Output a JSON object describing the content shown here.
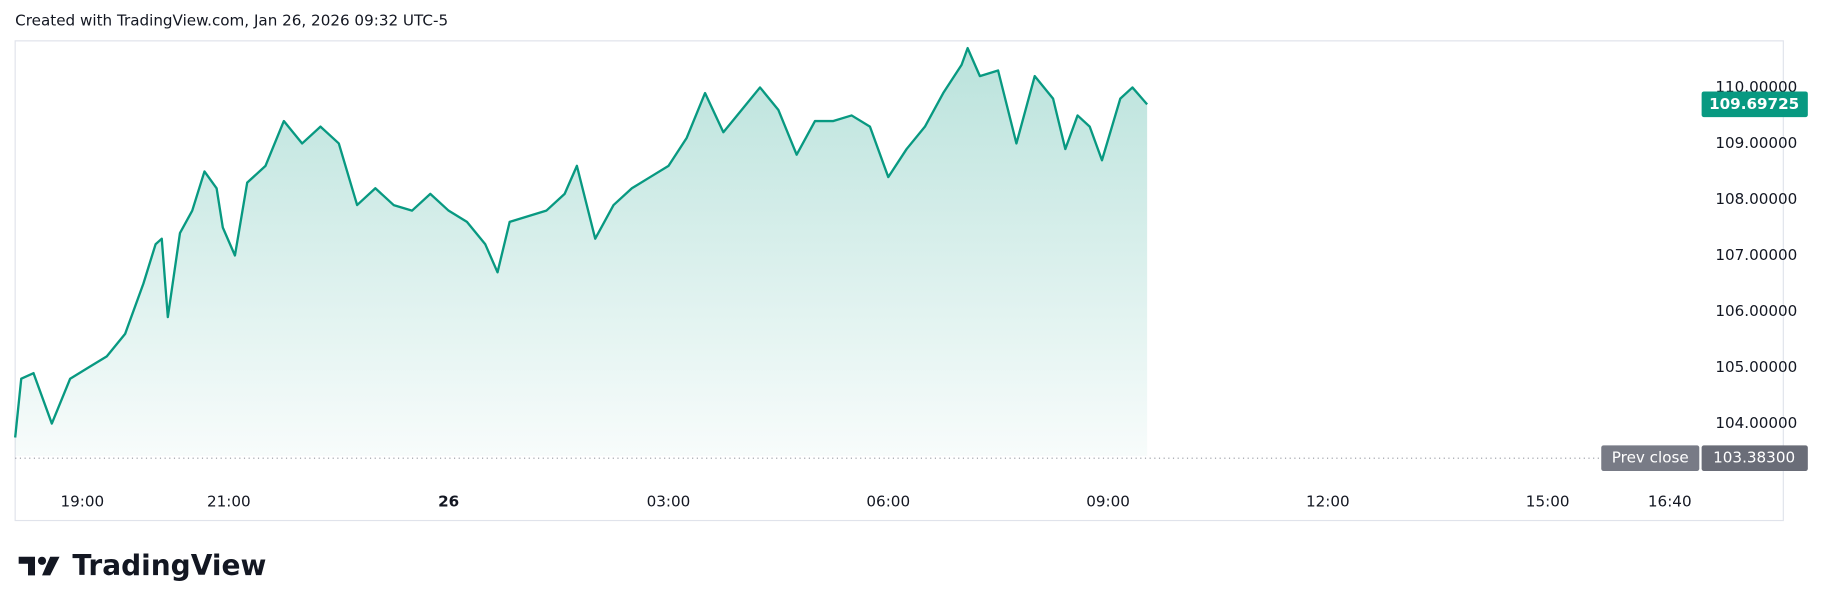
{
  "header": "Created with TradingView.com, Jan 26, 2026 09:32 UTC-5",
  "brand": "TradingView",
  "chart_data": {
    "type": "line",
    "color": "#089981",
    "x": [
      "18:05",
      "18:10",
      "18:20",
      "18:35",
      "18:50",
      "19:05",
      "19:20",
      "19:35",
      "19:50",
      "20:00",
      "20:05",
      "20:10",
      "20:20",
      "20:30",
      "20:40",
      "20:50",
      "20:55",
      "21:05",
      "21:15",
      "21:30",
      "21:45",
      "22:00",
      "22:15",
      "22:30",
      "22:45",
      "23:00",
      "23:15",
      "23:30",
      "23:45",
      "00:00",
      "00:15",
      "00:30",
      "00:40",
      "00:50",
      "01:05",
      "01:20",
      "01:35",
      "01:45",
      "02:00",
      "02:15",
      "02:30",
      "02:45",
      "03:00",
      "03:15",
      "03:30",
      "03:45",
      "04:00",
      "04:15",
      "04:30",
      "04:45",
      "05:00",
      "05:15",
      "05:30",
      "05:45",
      "06:00",
      "06:15",
      "06:30",
      "06:45",
      "07:00",
      "07:05",
      "07:15",
      "07:30",
      "07:45",
      "08:00",
      "08:15",
      "08:25",
      "08:35",
      "08:45",
      "08:55",
      "09:10",
      "09:20",
      "09:32"
    ],
    "values": [
      103.75,
      104.8,
      104.9,
      104.0,
      104.8,
      105.0,
      105.2,
      105.6,
      106.5,
      107.2,
      107.3,
      105.9,
      107.4,
      107.8,
      108.5,
      108.2,
      107.5,
      107.0,
      108.3,
      108.6,
      109.4,
      109.0,
      109.3,
      109.0,
      107.9,
      108.2,
      107.9,
      107.8,
      108.1,
      107.8,
      107.6,
      107.2,
      106.7,
      107.6,
      107.7,
      107.8,
      108.1,
      108.6,
      107.3,
      107.9,
      108.2,
      108.4,
      108.6,
      109.1,
      109.9,
      109.2,
      109.6,
      110.0,
      109.6,
      108.8,
      109.4,
      109.4,
      109.5,
      109.3,
      108.4,
      108.9,
      109.3,
      109.9,
      110.4,
      110.7,
      110.2,
      110.3,
      109.0,
      110.2,
      109.8,
      108.9,
      109.5,
      109.3,
      108.7,
      109.8,
      110.0,
      109.69725
    ],
    "xlim": [
      "18:05",
      "18:13"
    ],
    "xticks": [
      "19:00",
      "21:00",
      {
        "value": "00:00",
        "label": "26"
      },
      "03:00",
      "06:00",
      "09:00",
      "12:00",
      "15:00",
      "16:40"
    ],
    "ylim": [
      103.02,
      110.83
    ],
    "yticks": [
      {
        "value": 104,
        "label": "104.00000"
      },
      {
        "value": 105,
        "label": "105.00000"
      },
      {
        "value": 106,
        "label": "106.00000"
      },
      {
        "value": 107,
        "label": "107.00000"
      },
      {
        "value": 108,
        "label": "108.00000"
      },
      {
        "value": 109,
        "label": "109.00000"
      },
      {
        "value": 110,
        "label": "110.00000"
      }
    ],
    "prev_close": {
      "label": "Prev close",
      "value": 103.383,
      "value_label": "103.38300"
    }
  }
}
